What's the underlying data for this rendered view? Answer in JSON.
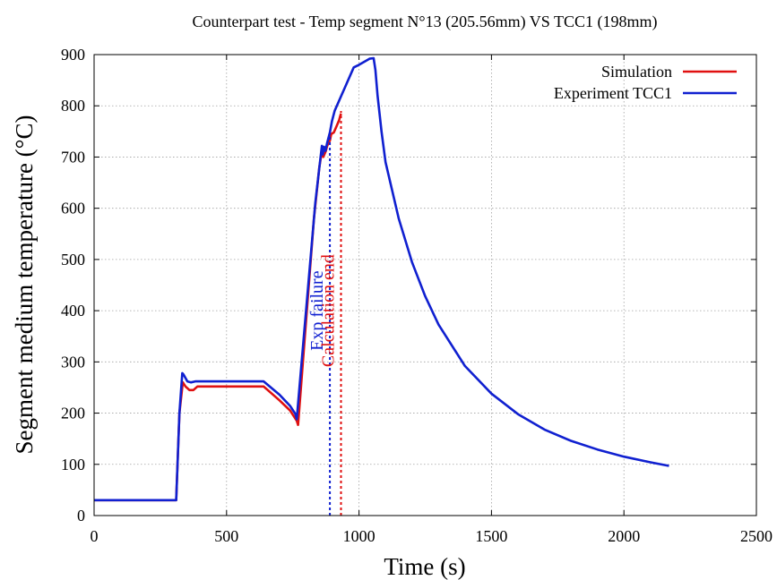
{
  "chart_data": {
    "type": "line",
    "title": "Counterpart test - Temp segment N°13 (205.56mm) VS TCC1 (198mm)",
    "xlabel": "Time (s)",
    "ylabel": "Segment medium temperature (°C)",
    "xlim": [
      0,
      2500
    ],
    "ylim": [
      0,
      900
    ],
    "xticks": [
      0,
      500,
      1000,
      1500,
      2000,
      2500
    ],
    "yticks": [
      0,
      100,
      200,
      300,
      400,
      500,
      600,
      700,
      800,
      900
    ],
    "grid": true,
    "legend_position": "top-right",
    "series": [
      {
        "name": "Simulation",
        "color": "#e01010",
        "x": [
          0,
          310,
          322,
          335,
          345,
          360,
          375,
          390,
          640,
          700,
          740,
          765,
          770,
          800,
          830,
          850,
          860,
          865,
          875,
          880,
          890,
          895,
          905,
          915,
          925,
          928,
          932
        ],
        "y": [
          30,
          30,
          200,
          260,
          252,
          245,
          245,
          252,
          252,
          225,
          205,
          185,
          177,
          380,
          580,
          680,
          712,
          700,
          712,
          722,
          732,
          745,
          748,
          760,
          772,
          778,
          785
        ]
      },
      {
        "name": "Experiment TCC1",
        "color": "#1020d0",
        "x": [
          0,
          310,
          322,
          333,
          338,
          352,
          366,
          382,
          640,
          700,
          740,
          760,
          765,
          800,
          835,
          855,
          860,
          863,
          868,
          873,
          880,
          890,
          898,
          908,
          980,
          1000,
          1040,
          1055,
          1062,
          1070,
          1085,
          1100,
          1150,
          1200,
          1250,
          1300,
          1400,
          1500,
          1600,
          1700,
          1800,
          1900,
          2000,
          2100,
          2170
        ],
        "y": [
          30,
          30,
          200,
          278,
          275,
          262,
          260,
          262,
          262,
          236,
          214,
          198,
          188,
          400,
          610,
          700,
          722,
          705,
          720,
          712,
          728,
          748,
          770,
          790,
          875,
          880,
          892,
          893,
          870,
          820,
          750,
          690,
          580,
          495,
          428,
          373,
          292,
          238,
          198,
          168,
          146,
          129,
          115,
          104,
          97
        ]
      }
    ],
    "annotations": [
      {
        "text": "Exp failure",
        "x": 890,
        "color": "#1020d0"
      },
      {
        "text": "Calculation end",
        "x": 932,
        "color": "#e01010"
      }
    ]
  }
}
